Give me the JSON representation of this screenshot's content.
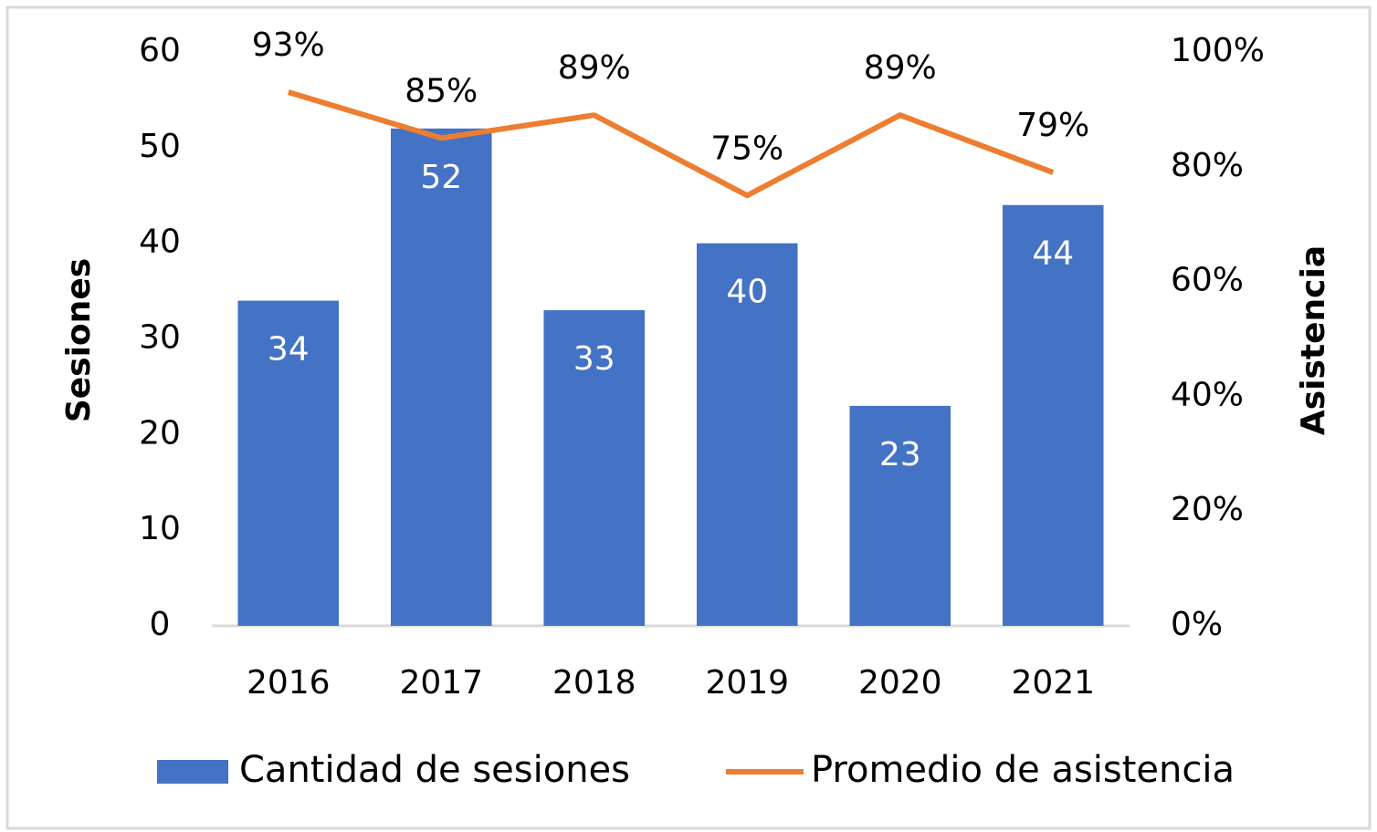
{
  "chart_data": {
    "type": "bar",
    "categories": [
      "2016",
      "2017",
      "2018",
      "2019",
      "2020",
      "2021"
    ],
    "series": [
      {
        "name": "Cantidad de sesiones",
        "type": "bar",
        "color": "#4472c4",
        "values": [
          34,
          52,
          33,
          40,
          23,
          44
        ]
      },
      {
        "name": "Promedio de asistencia",
        "type": "line",
        "axis": "y2",
        "color": "#ed7d31",
        "values": [
          93,
          85,
          89,
          75,
          89,
          79
        ],
        "value_labels": [
          "93%",
          "85%",
          "89%",
          "75%",
          "89%",
          "79%"
        ]
      }
    ],
    "y_label": "Sesiones",
    "y2_label": "Asistencia",
    "ylim": [
      0,
      60
    ],
    "yticks": [
      0,
      10,
      20,
      30,
      40,
      50,
      60
    ],
    "y2lim": [
      0,
      100
    ],
    "y2ticks": [
      {
        "value": 0,
        "label": "0%"
      },
      {
        "value": 20,
        "label": "20%"
      },
      {
        "value": 40,
        "label": "40%"
      },
      {
        "value": 60,
        "label": "60%"
      },
      {
        "value": 80,
        "label": "80%"
      },
      {
        "value": 100,
        "label": "100%"
      }
    ],
    "legend": "bottom"
  }
}
